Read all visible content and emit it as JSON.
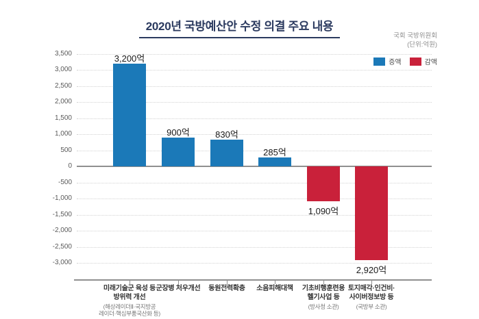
{
  "title": "2020년 국방예산안 수정 의결 주요 내용",
  "source": {
    "org": "국회 국방위원회",
    "unit": "(단위:억원)"
  },
  "legend": {
    "items": [
      {
        "label": "증액",
        "color": "#1b79b8"
      },
      {
        "label": "감액",
        "color": "#c9213a"
      }
    ]
  },
  "chart_data": {
    "type": "bar",
    "title": "2020년 국방예산안 수정 의결 주요 내용",
    "unit": "억원",
    "categories": [
      {
        "label": "미래기술군 육성 등\n방위력 개선",
        "note": "(해상레이더Ⅱ·국지방공\n레이더·핵심부품국산화 등)"
      },
      {
        "label": "군장병 처우개선",
        "note": ""
      },
      {
        "label": "동원전력확충",
        "note": ""
      },
      {
        "label": "소음피해대책",
        "note": ""
      },
      {
        "label": "기초비행훈련용\n헬기사업 등",
        "note": "(방사청 소관)"
      },
      {
        "label": "토지매각·인건비·\n사이버정보방 등",
        "note": "(국방부 소관)"
      }
    ],
    "values": [
      3200,
      900,
      830,
      285,
      -1090,
      -2920
    ],
    "value_labels": [
      "3,200억",
      "900억",
      "830억",
      "285억",
      "1,090억",
      "2,920억"
    ],
    "ylim": [
      -3000,
      3500
    ],
    "ytick_step": 500,
    "grid": "dotted",
    "legend_position": "top-right",
    "colors": {
      "positive": "#1b79b8",
      "negative": "#c9213a"
    }
  }
}
